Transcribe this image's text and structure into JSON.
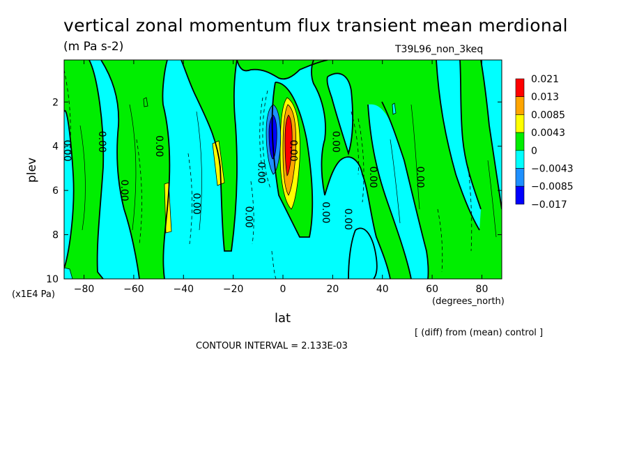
{
  "title": "vertical zonal momentum flux transient mean merdional",
  "units": "(m Pa s-2)",
  "run_label": "T39L96_non_3keq",
  "x_label": "lat",
  "x_unit": "(degrees_north)",
  "y_label": "plev",
  "y_unit": "(x1E4 Pa)",
  "note": "[ (diff) from (mean) control ]",
  "contour_interval": "CONTOUR INTERVAL = 2.133E-03",
  "colors": {
    "red": "#ff0000",
    "orange": "#ffa500",
    "yellow": "#ffff00",
    "green": "#00ee00",
    "cyan": "#00ffff",
    "mid_blue": "#1e90ff",
    "dark_blue": "#0000ff"
  },
  "chart_data": {
    "type": "heatmap",
    "title": "vertical zonal momentum flux transient mean merdional",
    "xlabel": "lat",
    "ylabel": "plev",
    "xlim": [
      -88,
      88
    ],
    "ylim": [
      10,
      0.1
    ],
    "x_ticks": [
      -80,
      -60,
      -40,
      -20,
      0,
      20,
      40,
      60,
      80
    ],
    "x_tick_labels": [
      "−80",
      "−60",
      "−40",
      "−20",
      "0",
      "20",
      "40",
      "60",
      "80"
    ],
    "y_ticks": [
      2,
      4,
      6,
      8,
      10
    ],
    "y_tick_labels": [
      "2",
      "4",
      "6",
      "8",
      "10"
    ],
    "colorbar": {
      "labels": [
        "0.021",
        "0.013",
        "0.0085",
        "0.0043",
        "0",
        "−0.0043",
        "−0.0085",
        "−0.017"
      ],
      "colors": [
        "#ff0000",
        "#ffa500",
        "#ffff00",
        "#00ee00",
        "#00ffff",
        "#1e90ff",
        "#0000ff"
      ]
    },
    "contour_labels": [
      "0.00",
      "0.00",
      "0.00",
      "0.00",
      "0.00",
      "0.00",
      "0.00",
      "0.00",
      "0.00",
      "0.00",
      "0.00",
      "0.00",
      "0.00"
    ],
    "features": [
      {
        "kind": "positive_max",
        "lat": 2,
        "plev_top": 2.4,
        "plev_bottom": 7.2,
        "level": "red"
      },
      {
        "kind": "negative_min",
        "lat": -4,
        "plev_top": 2.2,
        "plev_bottom": 5.8,
        "level": "dark_blue"
      },
      {
        "kind": "yellow_patch",
        "lat": -27,
        "plev_top": 3.8,
        "plev_bottom": 5.9
      },
      {
        "kind": "yellow_patch",
        "lat": -46,
        "plev_top": 5.6,
        "plev_bottom": 7.6
      }
    ]
  }
}
